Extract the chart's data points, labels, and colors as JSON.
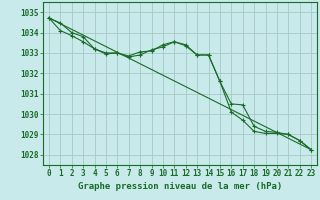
{
  "title": "Graphe pression niveau de la mer (hPa)",
  "background_color": "#c8eaea",
  "grid_color": "#a8c8c8",
  "line_color": "#1a6b2a",
  "xlim": [
    -0.5,
    23.5
  ],
  "ylim": [
    1027.5,
    1035.5
  ],
  "yticks": [
    1028,
    1029,
    1030,
    1031,
    1032,
    1033,
    1034,
    1035
  ],
  "xticks": [
    0,
    1,
    2,
    3,
    4,
    5,
    6,
    7,
    8,
    9,
    10,
    11,
    12,
    13,
    14,
    15,
    16,
    17,
    18,
    19,
    20,
    21,
    22,
    23
  ],
  "series1_x": [
    0,
    1,
    2,
    3,
    4,
    5,
    6,
    7,
    8,
    9,
    10,
    11,
    12,
    13,
    14,
    15,
    16,
    17,
    18,
    19,
    20,
    21,
    22,
    23
  ],
  "series1_y": [
    1034.72,
    1034.47,
    1034.0,
    1033.8,
    1033.2,
    1032.95,
    1033.0,
    1032.8,
    1032.9,
    1033.15,
    1033.3,
    1033.55,
    1033.35,
    1032.9,
    1032.9,
    1031.6,
    1030.1,
    1029.7,
    1029.15,
    1029.05,
    1029.05,
    1029.0,
    1028.7,
    1028.25
  ],
  "series2_x": [
    0,
    1,
    2,
    3,
    4,
    5,
    6,
    7,
    8,
    9,
    10,
    11,
    12,
    13,
    14,
    15,
    16,
    17,
    18,
    19,
    20,
    21,
    22,
    23
  ],
  "series2_y": [
    1034.72,
    1034.1,
    1033.85,
    1033.55,
    1033.2,
    1033.0,
    1033.0,
    1032.85,
    1033.05,
    1033.1,
    1033.4,
    1033.55,
    1033.4,
    1032.9,
    1032.9,
    1031.6,
    1030.5,
    1030.45,
    1029.4,
    1029.15,
    1029.1,
    1029.0,
    1028.7,
    1028.25
  ],
  "series3_x": [
    0,
    23
  ],
  "series3_y": [
    1034.72,
    1028.25
  ],
  "tick_fontsize": 5.5,
  "title_fontsize": 6.5
}
